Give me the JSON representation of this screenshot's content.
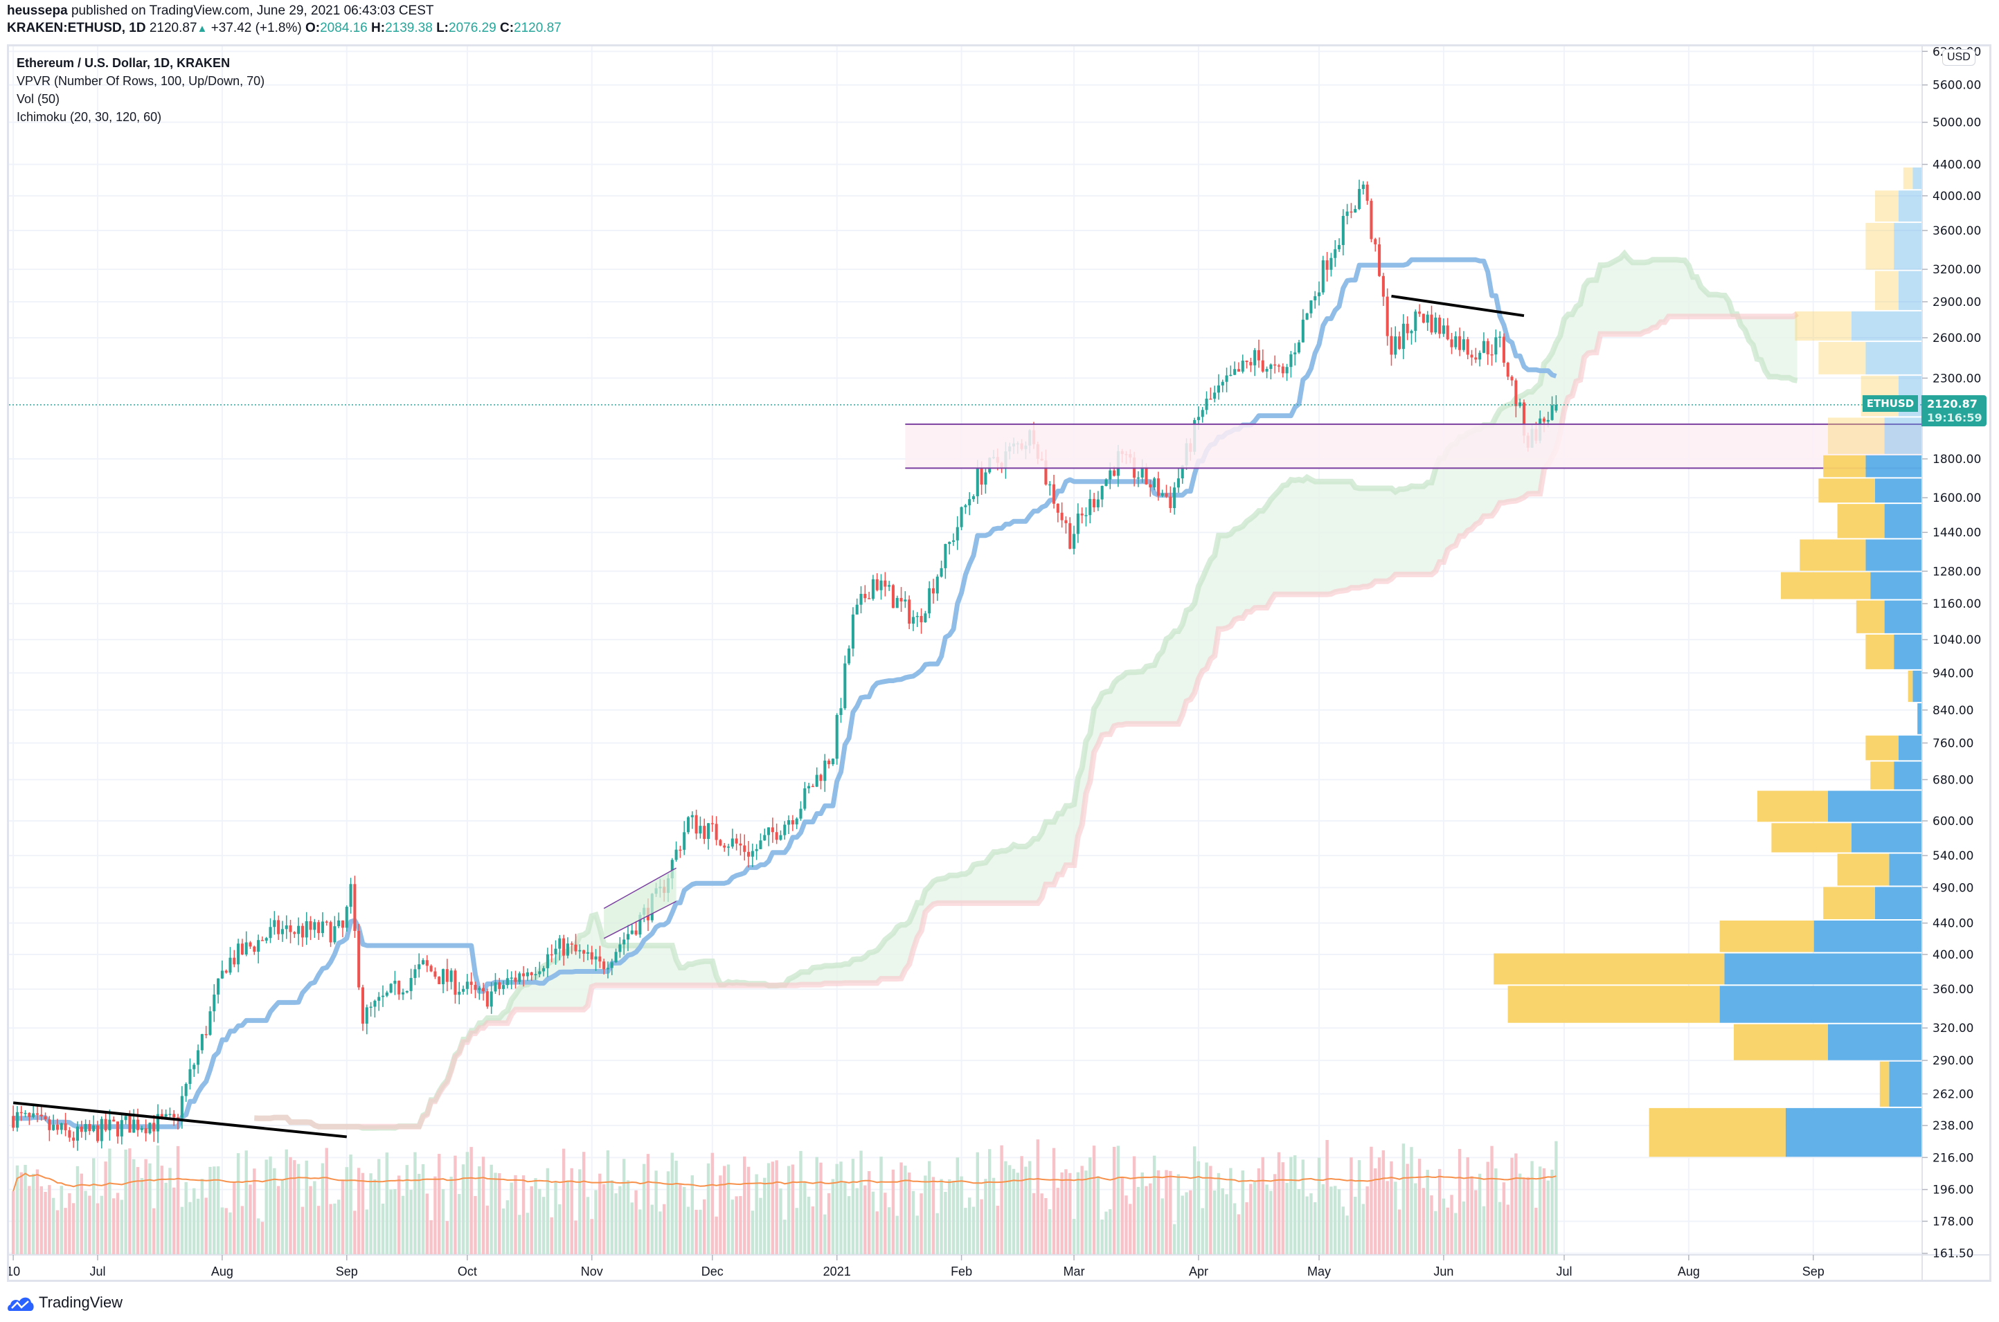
{
  "header": {
    "author": "heussepa",
    "published_text": "published on TradingView.com, June 29, 2021 06:43:03 CEST",
    "symbol": "KRAKEN:ETHUSD, 1D",
    "last": "2120.87",
    "change": "+37.42 (+1.8%)",
    "open_label": "O:",
    "open": "2084.16",
    "high_label": "H:",
    "high": "2139.38",
    "low_label": "L:",
    "low": "2076.29",
    "close_label": "C:",
    "close": "2120.87",
    "arrow": "▲"
  },
  "legend": {
    "title": "Ethereum / U.S. Dollar, 1D, KRAKEN",
    "indicators": [
      "VPVR (Number Of Rows, 100, Up/Down, 70)",
      "Vol (50)",
      "Ichimoku (20, 30, 120, 60)"
    ]
  },
  "price_axis": {
    "currency_label": "USD",
    "last_price_tag": "2120.87",
    "countdown": "19:16:59",
    "symbol_tag": "ETHUSD"
  },
  "brand": {
    "name": "TradingView"
  },
  "colors": {
    "up": "#26a69a",
    "down": "#ef5350",
    "vol_up": "#c8e6d8",
    "vol_down": "#f7c3c8",
    "vol_ma": "#f7904a",
    "kijun": "#90bde8",
    "cloud_up": "#e6f4e8",
    "cloud_up_edge": "#c8e6c9",
    "cloud_down": "#fde4e4",
    "cloud_down_edge": "#f8c7c9",
    "vpvr_up": "#5aaee8",
    "vpvr_down": "#f9d164",
    "zone_fill": "#fdeef3",
    "zone_edge": "#7b3fa0",
    "grid": "#f0f3fa",
    "trend": "#000000"
  },
  "chart_data": {
    "type": "candlestick",
    "title": "Ethereum / U.S. Dollar, 1D, KRAKEN",
    "xlabel": "",
    "ylabel": "USD",
    "y_scale": "log",
    "ylim": [
      161.5,
      6200
    ],
    "y_ticks": [
      6200,
      5600,
      5000,
      4400,
      4000,
      3600,
      3200,
      2900,
      2600,
      2300,
      1800,
      1600,
      1440,
      1280,
      1160,
      1040,
      940,
      840,
      760,
      680,
      600,
      540,
      490,
      440,
      400,
      360,
      320,
      290,
      262,
      238,
      216,
      196,
      178,
      161.5
    ],
    "x_ticks": [
      "10",
      "Jul",
      "Aug",
      "Sep",
      "Oct",
      "Nov",
      "Dec",
      "2021",
      "Feb",
      "Mar",
      "Apr",
      "May",
      "Jun",
      "Jul",
      "Aug",
      "Sep"
    ],
    "grid": true,
    "price_waypoints": [
      {
        "date": "2020-06-10",
        "close": 245
      },
      {
        "date": "2020-06-25",
        "close": 230
      },
      {
        "date": "2020-07-10",
        "close": 240
      },
      {
        "date": "2020-07-20",
        "close": 240
      },
      {
        "date": "2020-07-28",
        "close": 320
      },
      {
        "date": "2020-08-02",
        "close": 390
      },
      {
        "date": "2020-08-14",
        "close": 430
      },
      {
        "date": "2020-08-31",
        "close": 430
      },
      {
        "date": "2020-09-02",
        "close": 480
      },
      {
        "date": "2020-09-05",
        "close": 330
      },
      {
        "date": "2020-09-20",
        "close": 385
      },
      {
        "date": "2020-10-05",
        "close": 350
      },
      {
        "date": "2020-10-25",
        "close": 410
      },
      {
        "date": "2020-11-03",
        "close": 385
      },
      {
        "date": "2020-11-18",
        "close": 480
      },
      {
        "date": "2020-11-25",
        "close": 600
      },
      {
        "date": "2020-12-11",
        "close": 545
      },
      {
        "date": "2020-12-22",
        "close": 620
      },
      {
        "date": "2020-12-31",
        "close": 740
      },
      {
        "date": "2021-01-05",
        "close": 1100
      },
      {
        "date": "2021-01-10",
        "close": 1250
      },
      {
        "date": "2021-01-21",
        "close": 1100
      },
      {
        "date": "2021-01-28",
        "close": 1350
      },
      {
        "date": "2021-02-05",
        "close": 1700
      },
      {
        "date": "2021-02-19",
        "close": 1950
      },
      {
        "date": "2021-02-22",
        "close": 1700
      },
      {
        "date": "2021-02-28",
        "close": 1420
      },
      {
        "date": "2021-03-12",
        "close": 1800
      },
      {
        "date": "2021-03-25",
        "close": 1590
      },
      {
        "date": "2021-04-02",
        "close": 2100
      },
      {
        "date": "2021-04-15",
        "close": 2450
      },
      {
        "date": "2021-04-22",
        "close": 2300
      },
      {
        "date": "2021-05-03",
        "close": 3300
      },
      {
        "date": "2021-05-12",
        "close": 4150
      },
      {
        "date": "2021-05-19",
        "close": 2500
      },
      {
        "date": "2021-05-26",
        "close": 2800
      },
      {
        "date": "2021-06-08",
        "close": 2500
      },
      {
        "date": "2021-06-15",
        "close": 2550
      },
      {
        "date": "2021-06-22",
        "close": 1900
      },
      {
        "date": "2021-06-29",
        "close": 2120.87
      }
    ],
    "annotations": [
      {
        "type": "horizontal_zone",
        "from_date": "2021-01-18",
        "to": "axis",
        "price_top": 2000,
        "price_bottom": 1750
      },
      {
        "type": "trendline",
        "from": {
          "date": "2020-06-10",
          "price": 255
        },
        "to": {
          "date": "2020-09-01",
          "price": 230
        }
      },
      {
        "type": "trendline",
        "from": {
          "date": "2021-05-19",
          "price": 2950
        },
        "to": {
          "date": "2021-06-21",
          "price": 2780
        }
      },
      {
        "type": "channel",
        "from_date": "2020-11-04",
        "to_date": "2020-11-22",
        "upper": [
          460,
          520
        ],
        "lower": [
          420,
          470
        ]
      }
    ],
    "vpvr_rows": [
      {
        "price": 4200,
        "up": 0.02,
        "down": 0.02
      },
      {
        "price": 3950,
        "up": 0.05,
        "down": 0.05
      },
      {
        "price": 3450,
        "up": 0.06,
        "down": 0.06
      },
      {
        "price": 2950,
        "up": 0.05,
        "down": 0.05
      },
      {
        "price": 2700,
        "up": 0.15,
        "down": 0.12
      },
      {
        "price": 2450,
        "up": 0.12,
        "down": 0.1
      },
      {
        "price": 2200,
        "up": 0.05,
        "down": 0.08
      },
      {
        "price": 1900,
        "up": 0.08,
        "down": 0.12
      },
      {
        "price": 1750,
        "up": 0.12,
        "down": 0.09
      },
      {
        "price": 1650,
        "up": 0.1,
        "down": 0.12
      },
      {
        "price": 1500,
        "up": 0.08,
        "down": 0.1
      },
      {
        "price": 1330,
        "up": 0.12,
        "down": 0.14
      },
      {
        "price": 1230,
        "up": 0.11,
        "down": 0.19
      },
      {
        "price": 1120,
        "up": 0.08,
        "down": 0.06
      },
      {
        "price": 1000,
        "up": 0.06,
        "down": 0.06
      },
      {
        "price": 900,
        "up": 0.02,
        "down": 0.01
      },
      {
        "price": 820,
        "up": 0.01,
        "down": 0.0
      },
      {
        "price": 740,
        "up": 0.05,
        "down": 0.07
      },
      {
        "price": 700,
        "up": 0.06,
        "down": 0.05
      },
      {
        "price": 620,
        "up": 0.2,
        "down": 0.15
      },
      {
        "price": 575,
        "up": 0.15,
        "down": 0.17
      },
      {
        "price": 515,
        "up": 0.07,
        "down": 0.11
      },
      {
        "price": 470,
        "up": 0.1,
        "down": 0.11
      },
      {
        "price": 420,
        "up": 0.23,
        "down": 0.2
      },
      {
        "price": 385,
        "up": 0.42,
        "down": 0.49
      },
      {
        "price": 345,
        "up": 0.43,
        "down": 0.45
      },
      {
        "price": 305,
        "up": 0.2,
        "down": 0.2
      },
      {
        "price": 275,
        "up": 0.07,
        "down": 0.02
      },
      {
        "price": 230,
        "up": 0.29,
        "down": 0.29
      }
    ]
  }
}
